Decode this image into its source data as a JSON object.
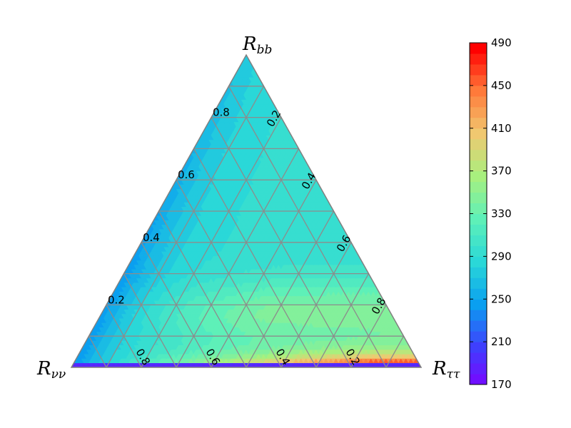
{
  "chart_data": {
    "type": "heatmap",
    "subtype": "ternary contour",
    "corners": {
      "top": {
        "main": "R",
        "sub": "bb"
      },
      "left": {
        "main": "R",
        "sub": "νν"
      },
      "right": {
        "main": "R",
        "sub": "ττ"
      }
    },
    "axes": {
      "left_edge_labels": [
        "0.2",
        "0.4",
        "0.6",
        "0.8"
      ],
      "right_edge_labels": [
        "0.2",
        "0.4",
        "0.6",
        "0.8"
      ],
      "bottom_edge_labels": [
        "0.8",
        "0.6",
        "0.4",
        "0.2"
      ],
      "grid_step": 0.1,
      "grid": true
    },
    "colorbar": {
      "min": 170,
      "max": 490,
      "ticks": [
        "490",
        "450",
        "410",
        "370",
        "330",
        "290",
        "250",
        "210",
        "170"
      ],
      "colormap": "rainbow",
      "placement": "right"
    },
    "field_summary": {
      "description": "value as a function of (R_bb, R_tautau, R_nunu)",
      "typical": 300,
      "low_left_edge": 240,
      "high_bottom_right": 480,
      "minimum_strip_bottom": 180
    }
  }
}
